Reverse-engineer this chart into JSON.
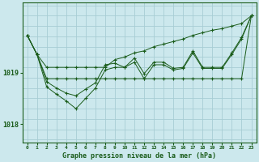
{
  "bg_color": "#cce8ed",
  "grid_color": "#a8cdd4",
  "line_color": "#1a5c1a",
  "title": "Graphe pression niveau de la mer (hPa)",
  "ylim": [
    1017.65,
    1020.35
  ],
  "xlim": [
    -0.5,
    23.5
  ],
  "yticks": [
    1018,
    1019
  ],
  "xticks": [
    0,
    1,
    2,
    3,
    4,
    5,
    6,
    7,
    8,
    9,
    10,
    11,
    12,
    13,
    14,
    15,
    16,
    17,
    18,
    19,
    20,
    21,
    22,
    23
  ],
  "s_flat": [
    1019.72,
    1019.35,
    1018.88,
    1018.88,
    1018.88,
    1018.88,
    1018.88,
    1018.88,
    1018.88,
    1018.88,
    1018.88,
    1018.88,
    1018.88,
    1018.88,
    1018.88,
    1018.88,
    1018.88,
    1018.88,
    1018.88,
    1018.88,
    1018.88,
    1018.88,
    1018.88,
    1020.1
  ],
  "s_diag": [
    1019.72,
    1019.35,
    1019.1,
    1019.1,
    1019.1,
    1019.1,
    1019.1,
    1019.1,
    1019.1,
    1019.25,
    1019.3,
    1019.38,
    1019.42,
    1019.5,
    1019.55,
    1019.6,
    1019.65,
    1019.72,
    1019.77,
    1019.82,
    1019.85,
    1019.9,
    1019.95,
    1020.1
  ],
  "s_zigzag1": [
    1019.72,
    1019.35,
    1018.82,
    1018.7,
    1018.6,
    1018.55,
    1018.68,
    1018.8,
    1019.15,
    1019.18,
    1019.1,
    1019.28,
    1018.98,
    1019.2,
    1019.2,
    1019.08,
    1019.1,
    1019.42,
    1019.1,
    1019.1,
    1019.1,
    1019.38,
    1019.68,
    1020.1
  ],
  "s_zigzag2": [
    1019.72,
    1019.35,
    1018.72,
    1018.58,
    1018.45,
    1018.3,
    1018.5,
    1018.7,
    1019.05,
    1019.1,
    1019.1,
    1019.2,
    1018.88,
    1019.15,
    1019.15,
    1019.05,
    1019.08,
    1019.38,
    1019.08,
    1019.08,
    1019.08,
    1019.35,
    1019.65,
    1020.1
  ]
}
